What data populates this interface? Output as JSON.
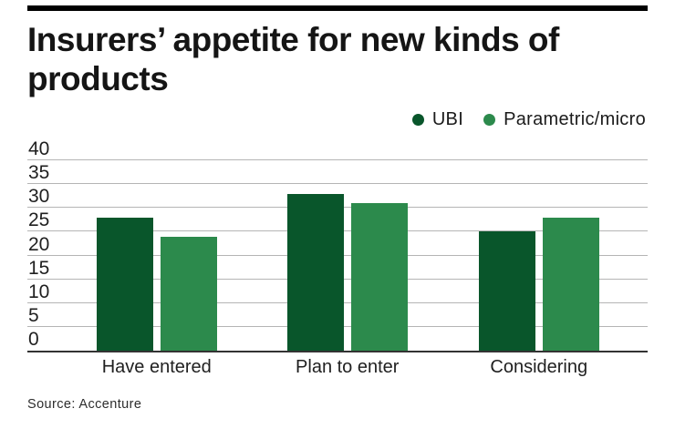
{
  "page": {
    "title_line1": "Insurers’ appetite for new kinds of",
    "title_line2": "products",
    "source": "Source: Accenture"
  },
  "chart_data": {
    "type": "bar",
    "title": "Insurers’ appetite for new kinds of products",
    "categories": [
      "Have entered",
      "Plan to enter",
      "Considering"
    ],
    "series": [
      {
        "name": "UBI",
        "color": "#09562b",
        "values": [
          28,
          33,
          25
        ]
      },
      {
        "name": "Parametric/micro",
        "color": "#2c8a4c",
        "values": [
          24,
          31,
          28
        ]
      }
    ],
    "ylim": [
      0,
      40
    ],
    "yticks": [
      0,
      5,
      10,
      15,
      20,
      25,
      30,
      35,
      40
    ],
    "xlabel": "",
    "ylabel": "",
    "grid": "horizontal",
    "legend_position": "top-right",
    "source": "Source: Accenture"
  },
  "colors": {
    "accent_bar": "#000000",
    "gridline": "#b5b5b5",
    "axis": "#333333",
    "text": "#1b1b1b"
  }
}
